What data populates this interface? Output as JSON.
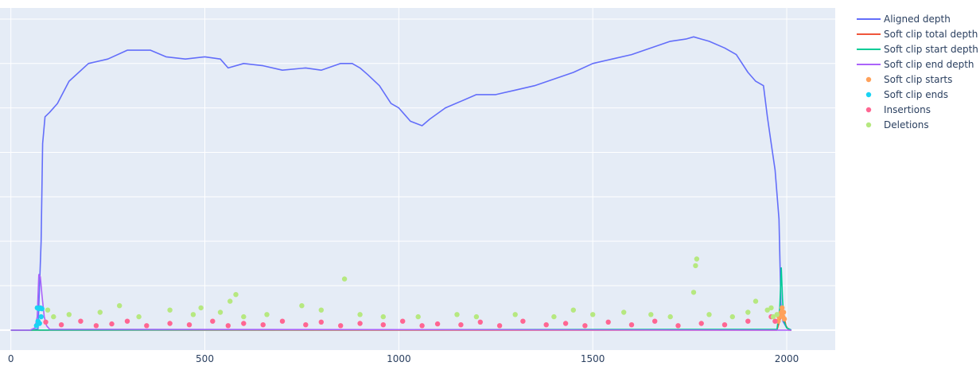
{
  "chart_data": {
    "type": "line",
    "x_axis": {
      "range": [
        -28,
        2125
      ],
      "ticks": [
        0,
        500,
        1000,
        1500,
        2000
      ]
    },
    "y_axis": {
      "range": [
        -0.45,
        7.25
      ],
      "gridlines": [
        0,
        1,
        2,
        3,
        4,
        5,
        6,
        7
      ]
    },
    "grid": true,
    "legend_placement": "top-right",
    "series": [
      {
        "name": "Aligned depth",
        "type": "line",
        "color": "#636efa",
        "points": [
          [
            0,
            0
          ],
          [
            55,
            0
          ],
          [
            70,
            0.03
          ],
          [
            78,
            2.0
          ],
          [
            82,
            4.2
          ],
          [
            88,
            4.8
          ],
          [
            100,
            4.9
          ],
          [
            120,
            5.1
          ],
          [
            150,
            5.6
          ],
          [
            200,
            6.0
          ],
          [
            250,
            6.1
          ],
          [
            300,
            6.3
          ],
          [
            330,
            6.3
          ],
          [
            360,
            6.3
          ],
          [
            400,
            6.15
          ],
          [
            450,
            6.1
          ],
          [
            500,
            6.15
          ],
          [
            540,
            6.1
          ],
          [
            560,
            5.9
          ],
          [
            600,
            6.0
          ],
          [
            650,
            5.95
          ],
          [
            700,
            5.85
          ],
          [
            760,
            5.9
          ],
          [
            800,
            5.85
          ],
          [
            850,
            6.0
          ],
          [
            880,
            6.0
          ],
          [
            900,
            5.9
          ],
          [
            920,
            5.75
          ],
          [
            950,
            5.5
          ],
          [
            980,
            5.1
          ],
          [
            1000,
            5.0
          ],
          [
            1030,
            4.7
          ],
          [
            1060,
            4.6
          ],
          [
            1080,
            4.75
          ],
          [
            1120,
            5.0
          ],
          [
            1160,
            5.15
          ],
          [
            1200,
            5.3
          ],
          [
            1250,
            5.3
          ],
          [
            1300,
            5.4
          ],
          [
            1350,
            5.5
          ],
          [
            1400,
            5.65
          ],
          [
            1450,
            5.8
          ],
          [
            1500,
            6.0
          ],
          [
            1550,
            6.1
          ],
          [
            1600,
            6.2
          ],
          [
            1650,
            6.35
          ],
          [
            1700,
            6.5
          ],
          [
            1740,
            6.55
          ],
          [
            1760,
            6.6
          ],
          [
            1780,
            6.55
          ],
          [
            1800,
            6.5
          ],
          [
            1840,
            6.35
          ],
          [
            1870,
            6.2
          ],
          [
            1900,
            5.8
          ],
          [
            1920,
            5.6
          ],
          [
            1940,
            5.5
          ],
          [
            1950,
            4.8
          ],
          [
            1960,
            4.2
          ],
          [
            1970,
            3.6
          ],
          [
            1980,
            2.5
          ],
          [
            1985,
            0.6
          ],
          [
            1990,
            0.2
          ],
          [
            2000,
            0.05
          ],
          [
            2012,
            0
          ]
        ]
      },
      {
        "name": "Soft clip total depth",
        "type": "line",
        "color": "#ef553b",
        "points": [
          [
            0,
            0
          ],
          [
            1975,
            0
          ],
          [
            1985,
            0.3
          ],
          [
            1992,
            0.35
          ],
          [
            1998,
            0.1
          ],
          [
            2005,
            0
          ],
          [
            2012,
            0
          ]
        ]
      },
      {
        "name": "Soft clip start depth",
        "type": "line",
        "color": "#00cc96",
        "points": [
          [
            0,
            0
          ],
          [
            1975,
            0.02
          ],
          [
            1982,
            0.5
          ],
          [
            1986,
            1.4
          ],
          [
            1989,
            0.7
          ],
          [
            1993,
            0.2
          ],
          [
            2000,
            0.05
          ],
          [
            2012,
            0
          ]
        ]
      },
      {
        "name": "Soft clip end depth",
        "type": "line",
        "color": "#ab63fa",
        "points": [
          [
            0,
            0
          ],
          [
            50,
            0
          ],
          [
            62,
            0.05
          ],
          [
            68,
            0.3
          ],
          [
            72,
            1.25
          ],
          [
            76,
            1.2
          ],
          [
            80,
            0.8
          ],
          [
            86,
            0.3
          ],
          [
            92,
            0.1
          ],
          [
            100,
            0.02
          ],
          [
            2012,
            0
          ]
        ]
      },
      {
        "name": "Soft clip starts",
        "type": "markers",
        "color": "#ffa15a",
        "points": [
          [
            1980,
            0.3
          ],
          [
            1984,
            0.35
          ],
          [
            1986,
            0.4
          ],
          [
            1990,
            0.3
          ],
          [
            1994,
            0.25
          ],
          [
            1978,
            0.2
          ],
          [
            1988,
            0.5
          ],
          [
            1992,
            0.4
          ]
        ]
      },
      {
        "name": "Soft clip ends",
        "type": "markers",
        "color": "#19d3f3",
        "points": [
          [
            68,
            0.5
          ],
          [
            72,
            0.48
          ],
          [
            76,
            0.5
          ],
          [
            80,
            0.48
          ],
          [
            70,
            0.2
          ],
          [
            74,
            0.15
          ],
          [
            78,
            0.3
          ],
          [
            66,
            0.1
          ]
        ]
      },
      {
        "name": "Insertions",
        "type": "markers",
        "color": "#ff6692",
        "points": [
          [
            90,
            0.18
          ],
          [
            130,
            0.12
          ],
          [
            180,
            0.2
          ],
          [
            220,
            0.1
          ],
          [
            260,
            0.14
          ],
          [
            300,
            0.2
          ],
          [
            350,
            0.1
          ],
          [
            410,
            0.15
          ],
          [
            460,
            0.12
          ],
          [
            520,
            0.2
          ],
          [
            560,
            0.1
          ],
          [
            600,
            0.15
          ],
          [
            650,
            0.12
          ],
          [
            700,
            0.2
          ],
          [
            760,
            0.12
          ],
          [
            800,
            0.18
          ],
          [
            850,
            0.1
          ],
          [
            900,
            0.15
          ],
          [
            960,
            0.12
          ],
          [
            1010,
            0.2
          ],
          [
            1060,
            0.1
          ],
          [
            1100,
            0.14
          ],
          [
            1160,
            0.12
          ],
          [
            1210,
            0.18
          ],
          [
            1260,
            0.1
          ],
          [
            1320,
            0.2
          ],
          [
            1380,
            0.12
          ],
          [
            1430,
            0.15
          ],
          [
            1480,
            0.1
          ],
          [
            1540,
            0.18
          ],
          [
            1600,
            0.12
          ],
          [
            1660,
            0.2
          ],
          [
            1720,
            0.1
          ],
          [
            1780,
            0.15
          ],
          [
            1840,
            0.12
          ],
          [
            1900,
            0.2
          ],
          [
            1960,
            0.3
          ],
          [
            1970,
            0.2
          ]
        ]
      },
      {
        "name": "Deletions",
        "type": "markers",
        "color": "#b6e880",
        "points": [
          [
            95,
            0.45
          ],
          [
            110,
            0.3
          ],
          [
            150,
            0.35
          ],
          [
            230,
            0.4
          ],
          [
            280,
            0.55
          ],
          [
            330,
            0.3
          ],
          [
            410,
            0.45
          ],
          [
            470,
            0.35
          ],
          [
            490,
            0.5
          ],
          [
            540,
            0.4
          ],
          [
            565,
            0.65
          ],
          [
            580,
            0.8
          ],
          [
            600,
            0.3
          ],
          [
            660,
            0.35
          ],
          [
            750,
            0.55
          ],
          [
            800,
            0.45
          ],
          [
            860,
            1.15
          ],
          [
            900,
            0.35
          ],
          [
            960,
            0.3
          ],
          [
            1050,
            0.3
          ],
          [
            1150,
            0.35
          ],
          [
            1200,
            0.3
          ],
          [
            1300,
            0.35
          ],
          [
            1400,
            0.3
          ],
          [
            1450,
            0.45
          ],
          [
            1500,
            0.35
          ],
          [
            1580,
            0.4
          ],
          [
            1650,
            0.35
          ],
          [
            1700,
            0.3
          ],
          [
            1760,
            0.85
          ],
          [
            1765,
            1.45
          ],
          [
            1768,
            1.6
          ],
          [
            1800,
            0.35
          ],
          [
            1860,
            0.3
          ],
          [
            1900,
            0.4
          ],
          [
            1920,
            0.65
          ],
          [
            1950,
            0.45
          ],
          [
            1960,
            0.5
          ],
          [
            1965,
            0.3
          ],
          [
            1975,
            0.35
          ]
        ]
      }
    ]
  }
}
